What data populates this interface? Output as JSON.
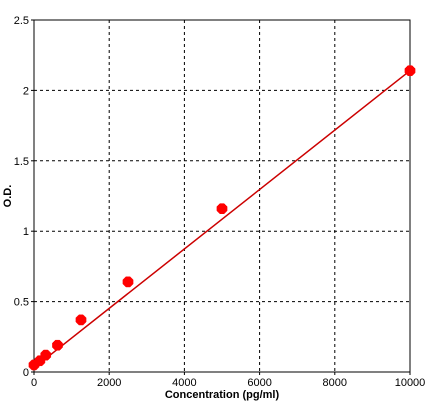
{
  "chart_data": {
    "type": "scatter",
    "xlabel": "Concentration (pg/ml)",
    "ylabel": "O.D.",
    "xlim": [
      0,
      10000
    ],
    "ylim": [
      0,
      2.5
    ],
    "grid": true,
    "x_ticks": [
      0,
      2000,
      4000,
      6000,
      8000,
      10000
    ],
    "x_tick_labels": [
      "0",
      "2000",
      "4000",
      "6000",
      "8000",
      "10000"
    ],
    "y_ticks": [
      0,
      0.5,
      1,
      1.5,
      2,
      2.5
    ],
    "y_tick_labels": [
      "0",
      "0.5",
      "1",
      "1.5",
      "2",
      "2.5"
    ],
    "points": [
      {
        "x": 0,
        "y": 0.05
      },
      {
        "x": 156,
        "y": 0.08
      },
      {
        "x": 312,
        "y": 0.12
      },
      {
        "x": 625,
        "y": 0.19
      },
      {
        "x": 1250,
        "y": 0.37
      },
      {
        "x": 2500,
        "y": 0.64
      },
      {
        "x": 5000,
        "y": 1.16
      },
      {
        "x": 10000,
        "y": 2.14
      }
    ],
    "fit_line": {
      "x": [
        0,
        10000
      ],
      "y": [
        0.03,
        2.14
      ]
    },
    "colors": {
      "points": "#ff0000",
      "line": "#cc0000",
      "grid": "#000000"
    }
  }
}
